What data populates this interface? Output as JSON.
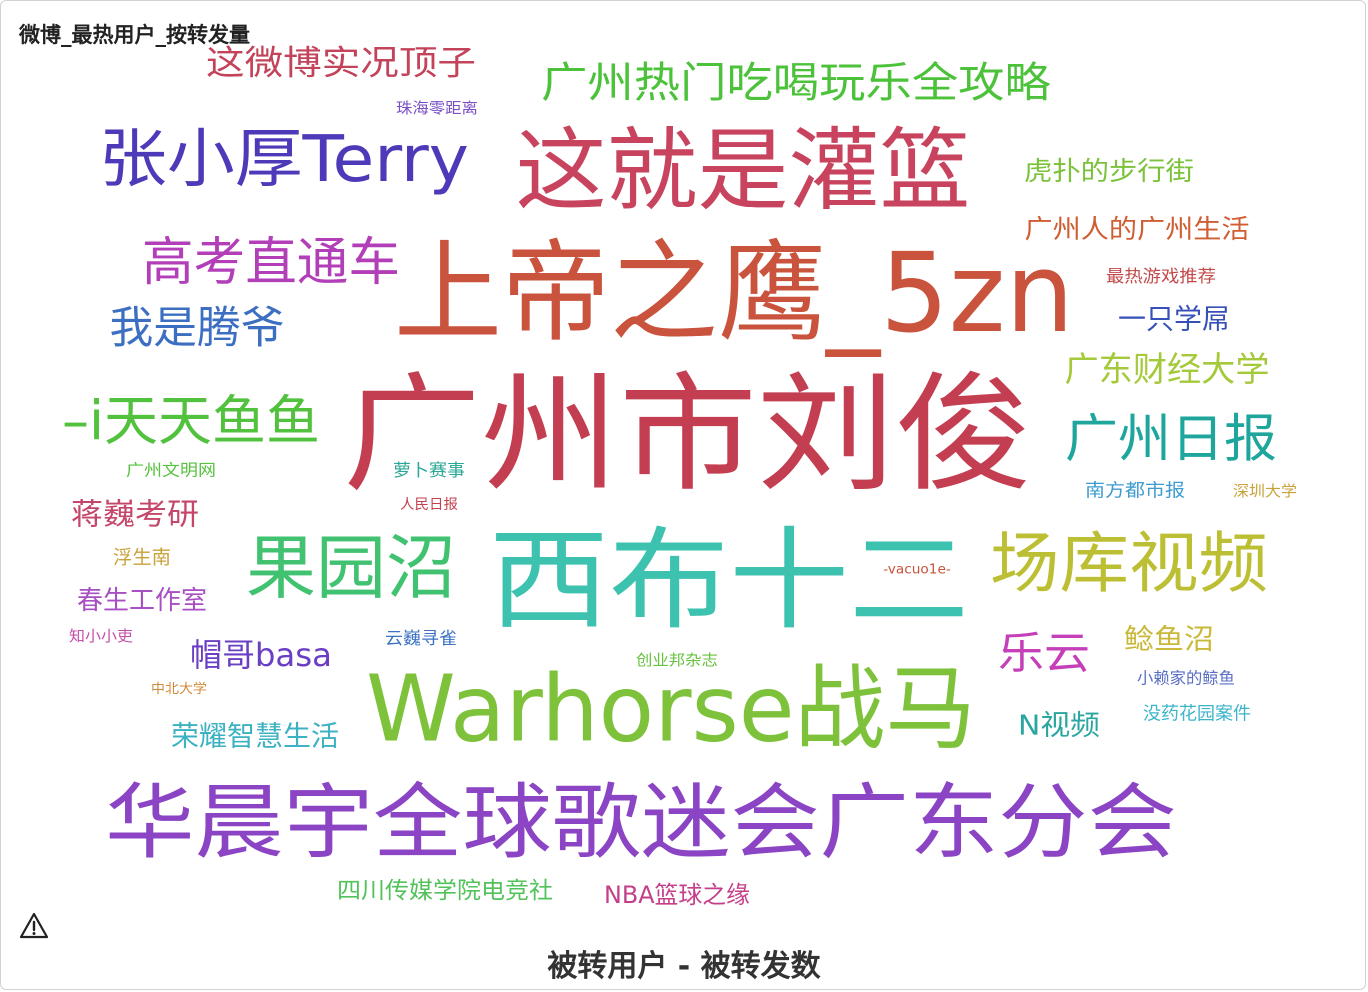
{
  "page": {
    "title": "微博_最热用户_按转发量",
    "caption": "被转用户 - 被转发数"
  },
  "chart_data": {
    "type": "wordcloud",
    "title": "微博_最热用户_按转发量",
    "xlabel": "被转用户 - 被转发数",
    "ylabel": "",
    "words": [
      {
        "text": "这微博实况顶子",
        "color": "#c2435a"
      },
      {
        "text": "广州热门吃喝玩乐全攻略",
        "color": "#4cc23b"
      },
      {
        "text": "珠海零距离",
        "color": "#7b4fc4"
      },
      {
        "text": "张小厚Terry",
        "color": "#4d3ab8"
      },
      {
        "text": "这就是灌篮",
        "color": "#c7435e"
      },
      {
        "text": "虎扑的步行街",
        "color": "#7bc23a"
      },
      {
        "text": "广州人的广州生活",
        "color": "#d05e33"
      },
      {
        "text": "高考直通车",
        "color": "#b33fb8"
      },
      {
        "text": "上帝之鹰_5zn",
        "color": "#c9533c"
      },
      {
        "text": "最热游戏推荐",
        "color": "#c44a4a"
      },
      {
        "text": "我是腾爷",
        "color": "#3c6fc2"
      },
      {
        "text": "一只学屌",
        "color": "#3650b8"
      },
      {
        "text": "广东财经大学",
        "color": "#a4c93a"
      },
      {
        "text": "广州市刘俊",
        "color": "#c33e50"
      },
      {
        "text": "–i天天鱼鱼",
        "color": "#52c23e"
      },
      {
        "text": "广州日报",
        "color": "#1ea59c"
      },
      {
        "text": "广州文明网",
        "color": "#56c23f"
      },
      {
        "text": "萝卜赛事",
        "color": "#2aa796"
      },
      {
        "text": "南方都市报",
        "color": "#3d9bd0"
      },
      {
        "text": "深圳大学",
        "color": "#c9a23a"
      },
      {
        "text": "人民日报",
        "color": "#c63f4f"
      },
      {
        "text": "蒋巍考研",
        "color": "#c44668"
      },
      {
        "text": "果园沼",
        "color": "#41c270"
      },
      {
        "text": "西布十二",
        "color": "#3ec2b0"
      },
      {
        "text": "场库视频",
        "color": "#bcbf33"
      },
      {
        "text": "浮生南",
        "color": "#c9a23a"
      },
      {
        "text": "-vacuo1e-",
        "color": "#c9533c"
      },
      {
        "text": "春生工作室",
        "color": "#a84fc4"
      },
      {
        "text": "乐云",
        "color": "#c43fb8"
      },
      {
        "text": "鲶鱼沼",
        "color": "#c9b83a"
      },
      {
        "text": "知小小吏",
        "color": "#c44fa8"
      },
      {
        "text": "云巍寻雀",
        "color": "#3b72c2"
      },
      {
        "text": "帽哥basa",
        "color": "#6a3fc4"
      },
      {
        "text": "创业邦杂志",
        "color": "#66c23f"
      },
      {
        "text": "中北大学",
        "color": "#d08a3a"
      },
      {
        "text": "Warhorse战马",
        "color": "#7dc23a"
      },
      {
        "text": "小赖家的鲸鱼",
        "color": "#5a6fc4"
      },
      {
        "text": "荣耀智慧生活",
        "color": "#3cb1c2"
      },
      {
        "text": "N视频",
        "color": "#2aa5a0"
      },
      {
        "text": "没药花园案件",
        "color": "#3cb5c9"
      },
      {
        "text": "华晨宇全球歌迷会广东分会",
        "color": "#8a44c4"
      },
      {
        "text": "四川传媒学院电竞社",
        "color": "#52c25a"
      },
      {
        "text": "NBA篮球之缘",
        "color": "#c43f8a"
      }
    ]
  }
}
